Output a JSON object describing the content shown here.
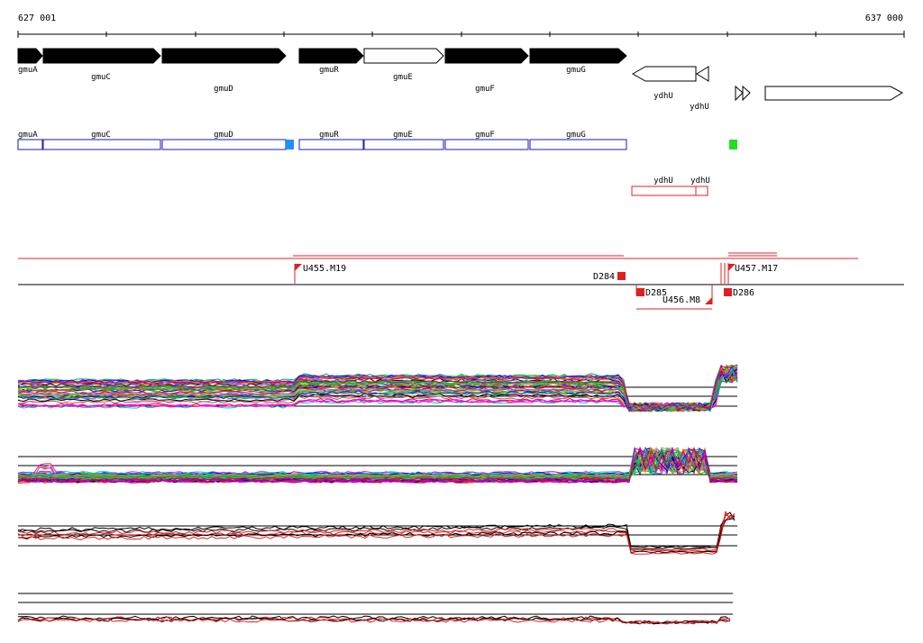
{
  "ruler": {
    "start_label": "627 001",
    "end_label": "637 000"
  },
  "colors": {
    "gene_fill": "#000000",
    "annotation_box": "#1a1ab8",
    "annotation_red": "#e02020",
    "marker_blue": "#1e90ff",
    "marker_green": "#22dd22",
    "axis": "#000000"
  },
  "genes": [
    {
      "name": "gmuA",
      "strand": "+",
      "filled": true
    },
    {
      "name": "gmuC",
      "strand": "+",
      "filled": true
    },
    {
      "name": "gmuD",
      "strand": "+",
      "filled": true
    },
    {
      "name": "gmuR",
      "strand": "+",
      "filled": true
    },
    {
      "name": "gmuE",
      "strand": "+",
      "filled": false
    },
    {
      "name": "gmuF",
      "strand": "+",
      "filled": true
    },
    {
      "name": "gmuG",
      "strand": "+",
      "filled": true
    },
    {
      "name": "ydhU",
      "strand": "-",
      "filled": false
    },
    {
      "name": "ydhU",
      "strand": "-",
      "filled": false
    }
  ],
  "annotation_track": {
    "blue_boxes": [
      "gmuA",
      "gmuC",
      "gmuD",
      "gmuR",
      "gmuE",
      "gmuF",
      "gmuG"
    ],
    "red_boxes": [
      "ydhU",
      "ydhU"
    ]
  },
  "features": [
    {
      "label": "U455.M19"
    },
    {
      "label": "D284"
    },
    {
      "label": "D285"
    },
    {
      "label": "U456.M8"
    },
    {
      "label": "D286"
    },
    {
      "label": "U457.M17"
    }
  ]
}
